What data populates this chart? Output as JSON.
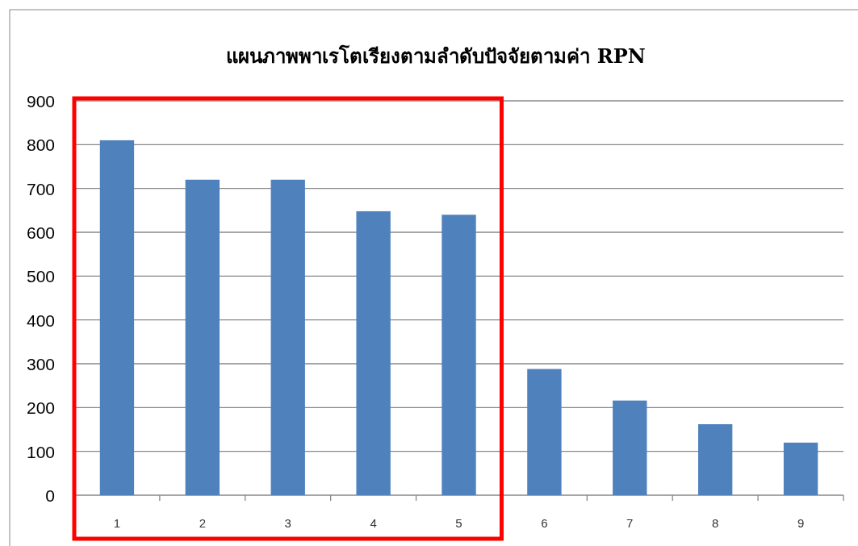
{
  "chart_data": {
    "type": "bar",
    "title": "แผนภาพพาเรโตเรียงตามลำดับปัจจัยตามค่า RPN",
    "categories": [
      "1",
      "2",
      "3",
      "4",
      "5",
      "6",
      "7",
      "8",
      "9"
    ],
    "values": [
      810,
      720,
      720,
      648,
      640,
      288,
      216,
      162,
      120
    ],
    "color": "#4f81bd",
    "ylim": [
      0,
      900
    ],
    "yticks": [
      0,
      100,
      200,
      300,
      400,
      500,
      600,
      700,
      800,
      900
    ],
    "grid": "y"
  }
}
